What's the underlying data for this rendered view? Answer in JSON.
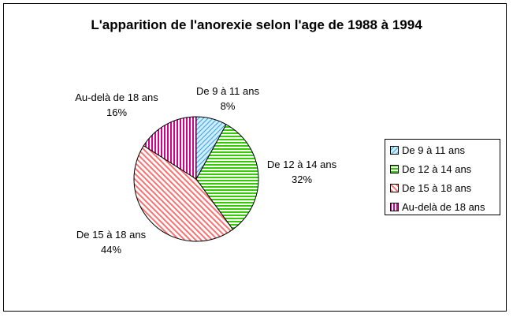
{
  "chart_data": {
    "type": "pie",
    "title": "L'apparition de l'anorexie selon l'age de 1988 à 1994",
    "legend_position": "right",
    "slices": [
      {
        "name": "De 9 à 11 ans",
        "value": 8,
        "percent_label": "8%",
        "color": "#cfeefc",
        "hatch": "diagonal-right",
        "hatch_color": "#3aa0e0"
      },
      {
        "name": "De 12 à 14 ans",
        "value": 32,
        "percent_label": "32%",
        "color": "#ffffff",
        "hatch": "horizontal",
        "hatch_color": "#33cc00"
      },
      {
        "name": "De 15 à 18 ans",
        "value": 44,
        "percent_label": "44%",
        "color": "#ffffff",
        "hatch": "diagonal-left",
        "hatch_color": "#ff6f6f"
      },
      {
        "name": "Au-delà de 18 ans",
        "value": 16,
        "percent_label": "16%",
        "color": "#ffffff",
        "hatch": "vertical",
        "hatch_color": "#d4008c"
      }
    ]
  }
}
